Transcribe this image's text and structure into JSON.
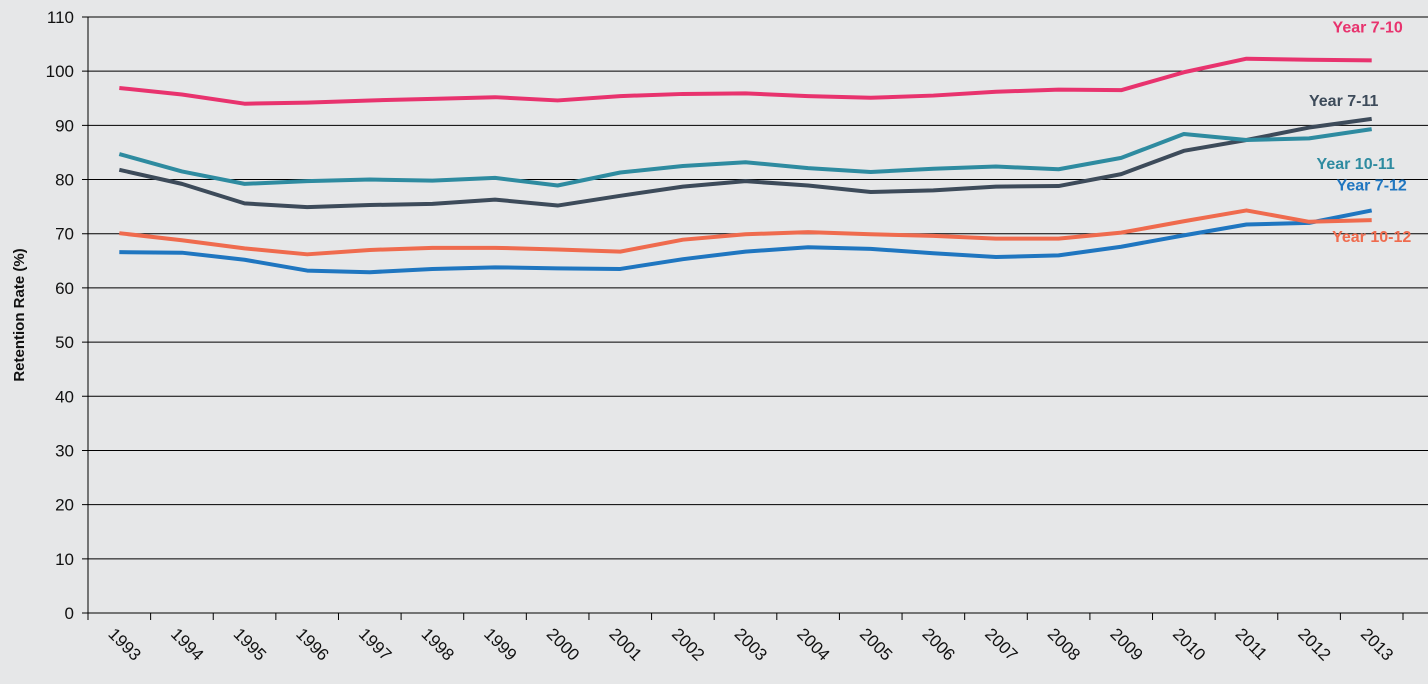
{
  "chart_data": {
    "type": "line",
    "y_label": "Retention Rate (%)",
    "categories": [
      "1993",
      "1994",
      "1995",
      "1996",
      "1997",
      "1998",
      "1999",
      "2000",
      "2001",
      "2002",
      "2003",
      "2004",
      "2005",
      "2006",
      "2007",
      "2008",
      "2009",
      "2010",
      "2011",
      "2012",
      "2013"
    ],
    "series": [
      {
        "name": "Year 7-10",
        "color": "#e8336e",
        "values": [
          96.9,
          95.7,
          94.0,
          94.2,
          94.6,
          94.9,
          95.2,
          94.6,
          95.4,
          95.8,
          95.9,
          95.4,
          95.1,
          95.5,
          96.2,
          96.6,
          96.5,
          99.8,
          102.3,
          102.1,
          102.0
        ]
      },
      {
        "name": "Year 7-11",
        "color": "#3d4b5a",
        "values": [
          81.8,
          79.2,
          75.6,
          74.9,
          75.3,
          75.5,
          76.3,
          75.2,
          77.0,
          78.7,
          79.7,
          78.9,
          77.7,
          78.0,
          78.7,
          78.8,
          81.0,
          85.3,
          87.3,
          89.6,
          91.2
        ]
      },
      {
        "name": "Year 10-11",
        "color": "#2e8ba0",
        "values": [
          84.7,
          81.5,
          79.2,
          79.7,
          80.0,
          79.8,
          80.3,
          78.9,
          81.3,
          82.5,
          83.2,
          82.1,
          81.4,
          82.0,
          82.4,
          81.9,
          84.0,
          88.4,
          87.3,
          87.6,
          89.3
        ]
      },
      {
        "name": "Year 7-12",
        "color": "#1f76c0",
        "values": [
          66.6,
          66.5,
          65.2,
          63.2,
          62.9,
          63.5,
          63.8,
          63.6,
          63.5,
          65.3,
          66.7,
          67.5,
          67.2,
          66.4,
          65.7,
          66.0,
          67.6,
          69.7,
          71.7,
          72.0,
          74.3
        ]
      },
      {
        "name": "Year 10-12",
        "color": "#ef6b4e",
        "values": [
          70.1,
          68.8,
          67.3,
          66.2,
          67.0,
          67.4,
          67.4,
          67.1,
          66.7,
          68.9,
          69.9,
          70.3,
          69.9,
          69.6,
          69.1,
          69.1,
          70.2,
          72.3,
          74.3,
          72.2,
          72.5
        ]
      }
    ],
    "ylim": [
      0,
      110
    ],
    "yticks": [
      0,
      10,
      20,
      30,
      40,
      50,
      60,
      70,
      80,
      90,
      100,
      110
    ],
    "grid": true
  }
}
